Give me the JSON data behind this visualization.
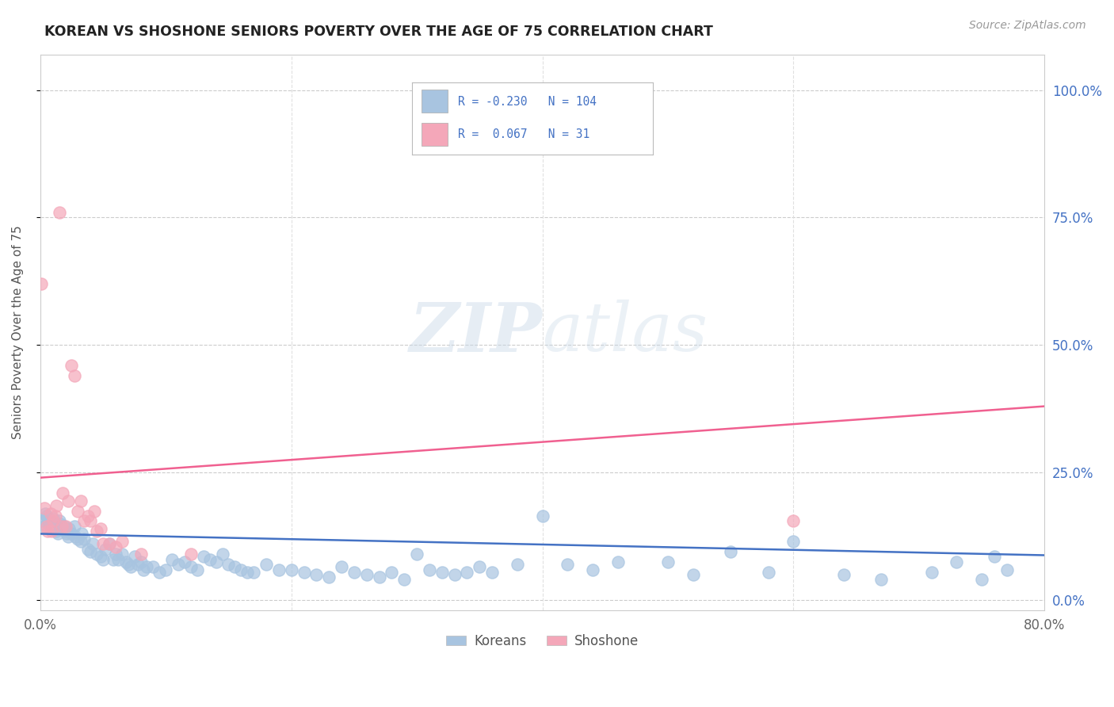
{
  "title": "KOREAN VS SHOSHONE SENIORS POVERTY OVER THE AGE OF 75 CORRELATION CHART",
  "source": "Source: ZipAtlas.com",
  "ylabel": "Seniors Poverty Over the Age of 75",
  "xlim": [
    0.0,
    0.8
  ],
  "ylim": [
    -0.02,
    1.07
  ],
  "yticks": [
    0.0,
    0.25,
    0.5,
    0.75,
    1.0
  ],
  "ytick_labels": [
    "0.0%",
    "25.0%",
    "50.0%",
    "75.0%",
    "100.0%"
  ],
  "xticks": [
    0.0,
    0.2,
    0.4,
    0.6,
    0.8
  ],
  "xtick_labels": [
    "0.0%",
    "",
    "",
    "",
    "80.0%"
  ],
  "korean_R": -0.23,
  "korean_N": 104,
  "shoshone_R": 0.067,
  "shoshone_N": 31,
  "korean_color": "#a8c4e0",
  "shoshone_color": "#f4a7b9",
  "korean_line_color": "#4472c4",
  "shoshone_line_color": "#f06090",
  "watermark_zip": "ZIP",
  "watermark_atlas": "atlas",
  "background_color": "#ffffff",
  "legend_text_color": "#4472c4",
  "title_color": "#222222",
  "right_tick_color": "#4472c4",
  "korean_points_x": [
    0.002,
    0.003,
    0.004,
    0.005,
    0.006,
    0.007,
    0.008,
    0.008,
    0.009,
    0.01,
    0.01,
    0.011,
    0.012,
    0.013,
    0.014,
    0.015,
    0.016,
    0.017,
    0.018,
    0.019,
    0.02,
    0.021,
    0.022,
    0.023,
    0.025,
    0.027,
    0.028,
    0.03,
    0.032,
    0.033,
    0.035,
    0.038,
    0.04,
    0.042,
    0.045,
    0.048,
    0.05,
    0.052,
    0.055,
    0.058,
    0.06,
    0.062,
    0.065,
    0.068,
    0.07,
    0.072,
    0.075,
    0.078,
    0.08,
    0.082,
    0.085,
    0.09,
    0.095,
    0.1,
    0.105,
    0.11,
    0.115,
    0.12,
    0.125,
    0.13,
    0.135,
    0.14,
    0.145,
    0.15,
    0.155,
    0.16,
    0.165,
    0.17,
    0.18,
    0.19,
    0.2,
    0.21,
    0.22,
    0.23,
    0.24,
    0.25,
    0.26,
    0.27,
    0.28,
    0.29,
    0.3,
    0.31,
    0.32,
    0.33,
    0.34,
    0.35,
    0.36,
    0.38,
    0.4,
    0.42,
    0.44,
    0.46,
    0.5,
    0.52,
    0.55,
    0.58,
    0.6,
    0.64,
    0.67,
    0.71,
    0.73,
    0.75,
    0.76,
    0.77
  ],
  "korean_points_y": [
    0.155,
    0.145,
    0.17,
    0.165,
    0.16,
    0.15,
    0.145,
    0.155,
    0.155,
    0.16,
    0.15,
    0.15,
    0.14,
    0.135,
    0.13,
    0.155,
    0.15,
    0.145,
    0.14,
    0.145,
    0.135,
    0.13,
    0.125,
    0.14,
    0.13,
    0.145,
    0.125,
    0.12,
    0.115,
    0.13,
    0.12,
    0.1,
    0.095,
    0.11,
    0.09,
    0.085,
    0.08,
    0.1,
    0.11,
    0.08,
    0.09,
    0.08,
    0.09,
    0.075,
    0.07,
    0.065,
    0.085,
    0.07,
    0.075,
    0.06,
    0.065,
    0.065,
    0.055,
    0.06,
    0.08,
    0.07,
    0.075,
    0.065,
    0.06,
    0.085,
    0.08,
    0.075,
    0.09,
    0.07,
    0.065,
    0.06,
    0.055,
    0.055,
    0.07,
    0.06,
    0.06,
    0.055,
    0.05,
    0.045,
    0.065,
    0.055,
    0.05,
    0.045,
    0.055,
    0.04,
    0.09,
    0.06,
    0.055,
    0.05,
    0.055,
    0.065,
    0.055,
    0.07,
    0.165,
    0.07,
    0.06,
    0.075,
    0.075,
    0.05,
    0.095,
    0.055,
    0.115,
    0.05,
    0.04,
    0.055,
    0.075,
    0.04,
    0.085,
    0.06
  ],
  "shoshone_points_x": [
    0.001,
    0.003,
    0.005,
    0.006,
    0.008,
    0.009,
    0.01,
    0.012,
    0.013,
    0.015,
    0.017,
    0.018,
    0.02,
    0.022,
    0.025,
    0.027,
    0.03,
    0.032,
    0.035,
    0.038,
    0.04,
    0.043,
    0.045,
    0.048,
    0.05,
    0.055,
    0.06,
    0.065,
    0.08,
    0.12,
    0.6
  ],
  "shoshone_points_y": [
    0.62,
    0.18,
    0.145,
    0.135,
    0.17,
    0.135,
    0.155,
    0.165,
    0.185,
    0.76,
    0.145,
    0.21,
    0.145,
    0.195,
    0.46,
    0.44,
    0.175,
    0.195,
    0.155,
    0.165,
    0.155,
    0.175,
    0.135,
    0.14,
    0.11,
    0.11,
    0.105,
    0.115,
    0.09,
    0.09,
    0.155
  ],
  "korean_line_y0": 0.13,
  "korean_line_y1": 0.088,
  "shoshone_line_y0": 0.24,
  "shoshone_line_y1": 0.38
}
